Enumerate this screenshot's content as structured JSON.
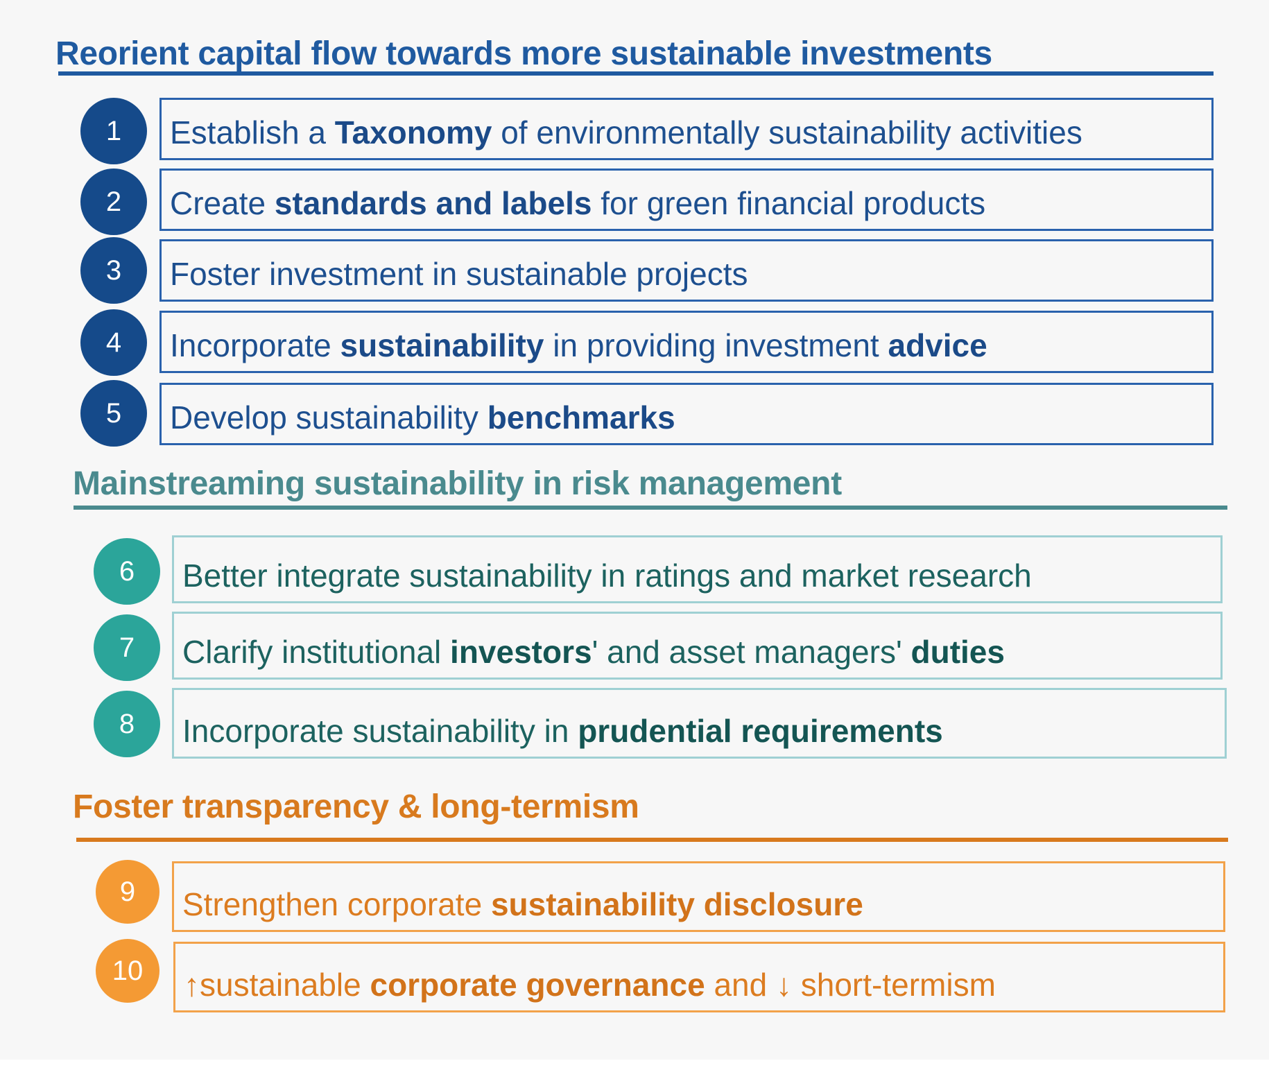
{
  "sections": [
    {
      "heading": "Reorient capital flow towards more sustainable investments",
      "items": [
        {
          "number": "1",
          "parts": [
            {
              "t": "Establish a "
            },
            {
              "t": "Taxonomy",
              "b": true
            },
            {
              "t": " of environmentally sustainability activities"
            }
          ]
        },
        {
          "number": "2",
          "parts": [
            {
              "t": "Create "
            },
            {
              "t": "standards and labels",
              "b": true
            },
            {
              "t": " for green financial products"
            }
          ]
        },
        {
          "number": "3",
          "parts": [
            {
              "t": "Foster investment in sustainable projects"
            }
          ]
        },
        {
          "number": "4",
          "parts": [
            {
              "t": "Incorporate "
            },
            {
              "t": "sustainability",
              "b": true
            },
            {
              "t": " in providing investment "
            },
            {
              "t": "advice",
              "b": true
            }
          ]
        },
        {
          "number": "5",
          "parts": [
            {
              "t": "Develop sustainability "
            },
            {
              "t": "benchmarks",
              "b": true
            }
          ]
        }
      ]
    },
    {
      "heading": "Mainstreaming sustainability in risk management",
      "items": [
        {
          "number": "6",
          "parts": [
            {
              "t": "Better integrate sustainability in ratings and market research"
            }
          ]
        },
        {
          "number": "7",
          "parts": [
            {
              "t": "Clarify institutional "
            },
            {
              "t": "investors",
              "b": true
            },
            {
              "t": "' and asset managers' "
            },
            {
              "t": "duties",
              "b": true
            }
          ]
        },
        {
          "number": "8",
          "parts": [
            {
              "t": "Incorporate sustainability in "
            },
            {
              "t": "prudential requirements",
              "b": true
            }
          ]
        }
      ]
    },
    {
      "heading": "Foster transparency & long-termism",
      "items": [
        {
          "number": "9",
          "parts": [
            {
              "t": "Strengthen corporate "
            },
            {
              "t": "sustainability disclosure",
              "b": true
            }
          ]
        },
        {
          "number": "10",
          "parts": [
            {
              "t": "↑sustainable "
            },
            {
              "t": "corporate governance",
              "b": true
            },
            {
              "t": " and ↓ short-termism"
            }
          ]
        }
      ]
    }
  ],
  "colors": {
    "section1": "#1f5aa0",
    "section2": "#4a8a8e",
    "section3": "#d87a1e",
    "background": "#f7f7f7"
  }
}
